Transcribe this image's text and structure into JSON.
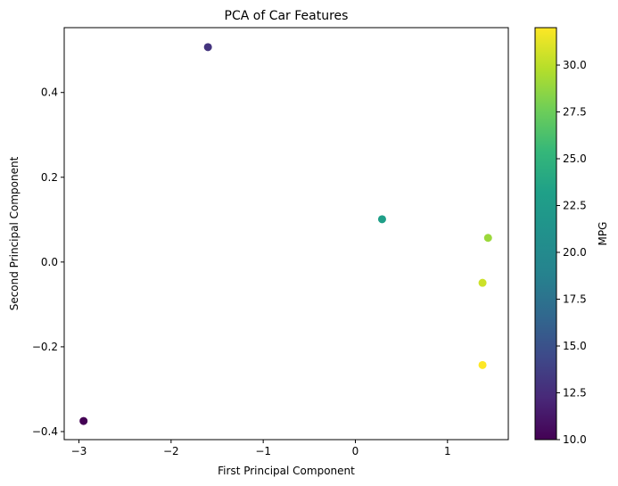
{
  "chart_data": {
    "type": "scatter",
    "title": "PCA of Car Features",
    "xlabel": "First Principal Component",
    "ylabel": "Second Principal Component",
    "xlim": [
      -3.16,
      1.66
    ],
    "ylim": [
      -0.419,
      0.553
    ],
    "xticks": [
      -3,
      -2,
      -1,
      0,
      1
    ],
    "xtick_labels": [
      "−3",
      "−2",
      "−1",
      "0",
      "1"
    ],
    "yticks": [
      -0.4,
      -0.2,
      0.0,
      0.2,
      0.4
    ],
    "ytick_labels": [
      "−0.4",
      "−0.2",
      "0.0",
      "0.2",
      "0.4"
    ],
    "grid": false,
    "colorbar": {
      "label": "MPG",
      "colormap": "viridis",
      "range": [
        10,
        32
      ],
      "ticks": [
        10.0,
        12.5,
        15.0,
        17.5,
        20.0,
        22.5,
        25.0,
        27.5,
        30.0
      ],
      "tick_labels": [
        "10.0",
        "12.5",
        "15.0",
        "17.5",
        "20.0",
        "22.5",
        "25.0",
        "27.5",
        "30.0"
      ]
    },
    "points": [
      {
        "x": -2.95,
        "y": -0.375,
        "mpg": 10.0
      },
      {
        "x": -1.6,
        "y": 0.507,
        "mpg": 13.0
      },
      {
        "x": 0.29,
        "y": 0.101,
        "mpg": 23.0
      },
      {
        "x": 1.44,
        "y": 0.057,
        "mpg": 29.0
      },
      {
        "x": 1.38,
        "y": -0.049,
        "mpg": 30.5
      },
      {
        "x": 1.38,
        "y": -0.243,
        "mpg": 32.0
      }
    ]
  }
}
